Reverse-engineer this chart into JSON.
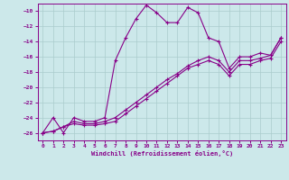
{
  "xlabel": "Windchill (Refroidissement éolien,°C)",
  "bg_color": "#cce8ea",
  "grid_color": "#aacccc",
  "line_color": "#880088",
  "xlim": [
    -0.5,
    23.5
  ],
  "ylim": [
    -27,
    -9
  ],
  "xticks": [
    0,
    1,
    2,
    3,
    4,
    5,
    6,
    7,
    8,
    9,
    10,
    11,
    12,
    13,
    14,
    15,
    16,
    17,
    18,
    19,
    20,
    21,
    22,
    23
  ],
  "yticks": [
    -26,
    -24,
    -22,
    -20,
    -18,
    -16,
    -14,
    -12,
    -10
  ],
  "series1_x": [
    0,
    1,
    2,
    3,
    4,
    5,
    6,
    7,
    8,
    9,
    10,
    11,
    12,
    13,
    14,
    15,
    16,
    17,
    18,
    19,
    20,
    21,
    22,
    23
  ],
  "series1_y": [
    -26.0,
    -24.0,
    -26.0,
    -24.0,
    -24.5,
    -24.5,
    -24.0,
    -16.5,
    -13.5,
    -11.0,
    -9.2,
    -10.2,
    -11.5,
    -11.5,
    -9.5,
    -10.2,
    -13.5,
    -14.0,
    -17.5,
    -16.0,
    -16.0,
    -15.5,
    -15.8,
    -13.5
  ],
  "series2_x": [
    0,
    1,
    2,
    3,
    4,
    5,
    6,
    7,
    8,
    9,
    10,
    11,
    12,
    13,
    14,
    15,
    16,
    17,
    18,
    19,
    20,
    21,
    22,
    23
  ],
  "series2_y": [
    -26.0,
    -25.8,
    -25.2,
    -24.5,
    -24.8,
    -24.8,
    -24.5,
    -24.0,
    -23.0,
    -22.0,
    -21.0,
    -20.0,
    -19.0,
    -18.2,
    -17.2,
    -16.5,
    -16.0,
    -16.5,
    -18.0,
    -16.5,
    -16.5,
    -16.2,
    -15.8,
    -13.5
  ],
  "series3_x": [
    0,
    1,
    2,
    3,
    4,
    5,
    6,
    7,
    8,
    9,
    10,
    11,
    12,
    13,
    14,
    15,
    16,
    17,
    18,
    19,
    20,
    21,
    22,
    23
  ],
  "series3_y": [
    -26.0,
    -25.8,
    -25.2,
    -24.8,
    -25.0,
    -25.0,
    -24.8,
    -24.5,
    -23.5,
    -22.5,
    -21.5,
    -20.5,
    -19.5,
    -18.5,
    -17.5,
    -17.0,
    -16.5,
    -17.0,
    -18.5,
    -17.0,
    -17.0,
    -16.5,
    -16.2,
    -14.0
  ]
}
